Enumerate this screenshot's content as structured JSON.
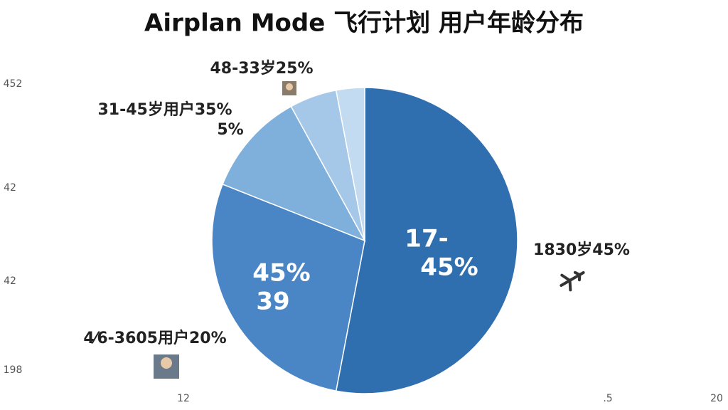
{
  "chart_data": {
    "type": "pie",
    "title": "Airplan Mode 飞行计划 用户年龄分布",
    "values": [
      53,
      28,
      11,
      5,
      3
    ],
    "colors": [
      "#2f6fb0",
      "#4a86c5",
      "#7fb0dc",
      "#a6c8e8",
      "#c3dbf0"
    ],
    "inner_labels": [
      "17-",
      "45%",
      "45%",
      "39"
    ],
    "outer_labels": [
      "1830岁45%",
      "4⁄6-3605用户20%",
      "31-45岁用户35%",
      "5%",
      "48-33岁25%"
    ],
    "stray_labels": [
      "452",
      "42",
      "42",
      "198",
      "12",
      ".5",
      "20"
    ]
  }
}
